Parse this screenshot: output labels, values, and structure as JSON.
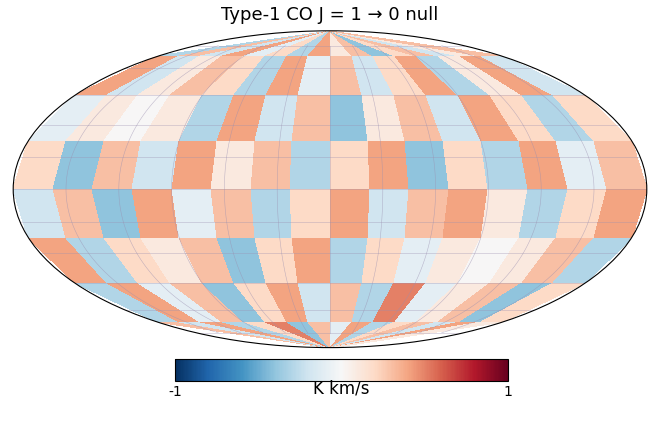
{
  "chart_data": {
    "type": "heatmap",
    "title": "Type-1 CO J = 1 → 0 null",
    "colorbar_label": "K km/s",
    "lon_edges": [
      -180,
      -157.5,
      -135,
      -112.5,
      -90,
      -67.5,
      -45,
      -22.5,
      0,
      22.5,
      45,
      67.5,
      90,
      112.5,
      135,
      157.5,
      180
    ],
    "lat_edges": [
      -90,
      -67.5,
      -45,
      -22.5,
      0,
      22.5,
      45,
      67.5,
      90
    ],
    "cells": [
      [
        0.3,
        -0.2,
        0.4,
        -0.3,
        0.2,
        0.5,
        -0.4,
        0.3,
        -0.1,
        0.4,
        -0.3,
        0.2,
        0.3,
        -0.2,
        0.4,
        0.1
      ],
      [
        -0.3,
        0.4,
        -0.1,
        0.3,
        -0.4,
        0.2,
        0.4,
        -0.2,
        0.3,
        -0.3,
        0.5,
        -0.1,
        0.1,
        0.3,
        -0.4,
        0.2
      ],
      [
        0.4,
        -0.3,
        0.2,
        0.1,
        0.3,
        -0.4,
        0.2,
        0.4,
        -0.3,
        0.2,
        -0.1,
        0.1,
        0.0,
        0.1,
        0.3,
        -0.3
      ],
      [
        -0.2,
        0.3,
        -0.4,
        0.4,
        -0.1,
        0.3,
        -0.3,
        0.2,
        0.4,
        -0.2,
        0.3,
        0.4,
        0.1,
        -0.3,
        0.2,
        0.4
      ],
      [
        0.2,
        -0.4,
        0.3,
        -0.2,
        0.4,
        0.1,
        0.3,
        -0.3,
        0.2,
        0.4,
        -0.4,
        0.2,
        -0.3,
        0.4,
        -0.1,
        0.3
      ],
      [
        -0.1,
        0.1,
        0.0,
        0.1,
        -0.3,
        0.4,
        -0.2,
        0.3,
        -0.4,
        0.1,
        0.3,
        -0.2,
        0.4,
        0.2,
        -0.3,
        0.2
      ],
      [
        0.4,
        -0.2,
        0.1,
        0.3,
        0.2,
        -0.3,
        0.4,
        -0.1,
        0.3,
        -0.2,
        0.2,
        0.4,
        -0.3,
        0.1,
        0.4,
        -0.2
      ],
      [
        -0.3,
        0.3,
        -0.2,
        0.4,
        -0.1,
        0.2,
        -0.3,
        0.4,
        0.1,
        0.3,
        -0.4,
        0.2,
        0.3,
        -0.2,
        0.1,
        0.3
      ]
    ],
    "zlim": [
      -1,
      1
    ],
    "zticks": [
      -1,
      1
    ],
    "grid": true,
    "tick_labels": false
  }
}
